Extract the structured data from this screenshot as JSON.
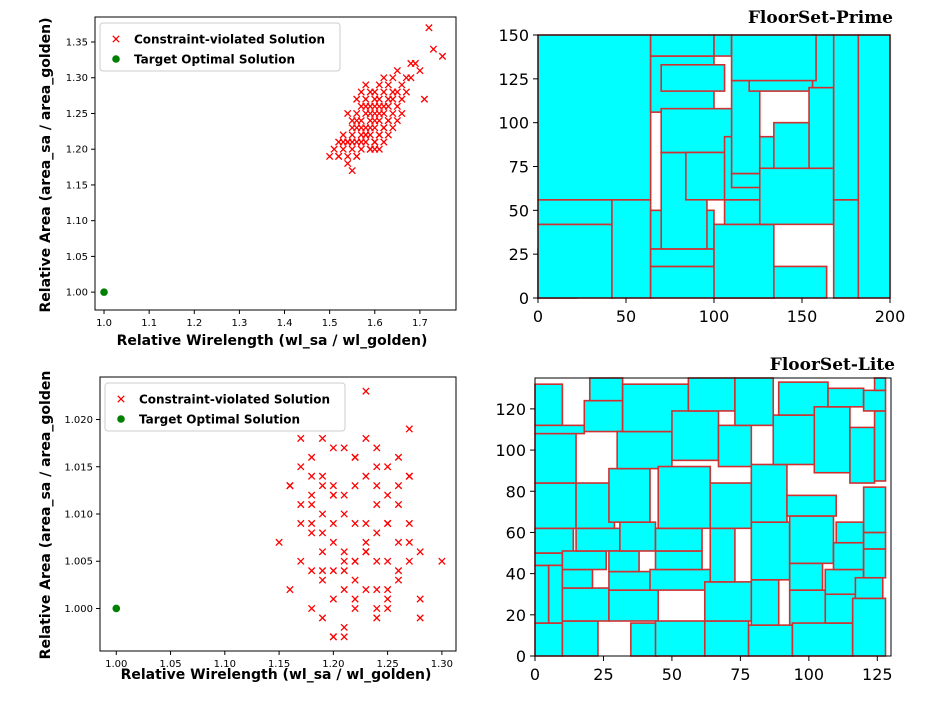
{
  "chart_data": [
    {
      "id": "prime-scatter",
      "type": "scatter",
      "xlabel": "Relative Wirelength (wl_sa / wl_golden)",
      "ylabel": "Relative Area (area_sa / area_golden)",
      "xlim": [
        0.98,
        1.78
      ],
      "ylim": [
        0.975,
        1.385
      ],
      "xticks": [
        1.0,
        1.1,
        1.2,
        1.3,
        1.4,
        1.5,
        1.6,
        1.7
      ],
      "yticks": [
        1.0,
        1.05,
        1.1,
        1.15,
        1.2,
        1.25,
        1.3,
        1.35
      ],
      "legend": [
        "Constraint-violated Solution",
        "Target Optimal Solution"
      ],
      "legend_position": "upper-left",
      "series": [
        {
          "name": "Constraint-violated Solution",
          "marker": "x",
          "color": "#ff0000",
          "x": [
            1.5,
            1.51,
            1.52,
            1.52,
            1.53,
            1.53,
            1.54,
            1.54,
            1.54,
            1.55,
            1.55,
            1.55,
            1.55,
            1.56,
            1.56,
            1.56,
            1.56,
            1.56,
            1.57,
            1.57,
            1.57,
            1.57,
            1.57,
            1.58,
            1.58,
            1.58,
            1.58,
            1.58,
            1.58,
            1.59,
            1.59,
            1.59,
            1.59,
            1.59,
            1.59,
            1.6,
            1.6,
            1.6,
            1.6,
            1.6,
            1.6,
            1.61,
            1.61,
            1.61,
            1.61,
            1.61,
            1.61,
            1.62,
            1.62,
            1.62,
            1.62,
            1.62,
            1.63,
            1.63,
            1.63,
            1.63,
            1.64,
            1.64,
            1.64,
            1.64,
            1.65,
            1.65,
            1.65,
            1.66,
            1.66,
            1.67,
            1.67,
            1.68,
            1.68,
            1.69,
            1.7,
            1.71,
            1.72,
            1.73,
            1.75,
            1.53,
            1.55,
            1.57,
            1.59,
            1.61,
            1.62,
            1.63,
            1.6,
            1.58,
            1.56,
            1.54,
            1.64,
            1.66,
            1.65,
            1.63,
            1.59,
            1.57,
            1.6,
            1.62,
            1.52,
            1.56,
            1.61,
            1.55,
            1.58,
            1.6,
            1.54
          ],
          "y": [
            1.19,
            1.2,
            1.21,
            1.19,
            1.2,
            1.22,
            1.19,
            1.21,
            1.18,
            1.17,
            1.2,
            1.22,
            1.23,
            1.19,
            1.21,
            1.23,
            1.24,
            1.25,
            1.2,
            1.22,
            1.24,
            1.26,
            1.28,
            1.21,
            1.22,
            1.23,
            1.25,
            1.27,
            1.29,
            1.2,
            1.22,
            1.24,
            1.25,
            1.26,
            1.28,
            1.21,
            1.23,
            1.24,
            1.25,
            1.27,
            1.28,
            1.22,
            1.24,
            1.25,
            1.26,
            1.27,
            1.29,
            1.23,
            1.25,
            1.26,
            1.28,
            1.3,
            1.24,
            1.26,
            1.27,
            1.29,
            1.25,
            1.27,
            1.28,
            1.3,
            1.26,
            1.28,
            1.31,
            1.27,
            1.29,
            1.28,
            1.3,
            1.3,
            1.32,
            1.32,
            1.31,
            1.27,
            1.37,
            1.34,
            1.33,
            1.21,
            1.24,
            1.23,
            1.2,
            1.22,
            1.21,
            1.24,
            1.2,
            1.26,
            1.27,
            1.25,
            1.23,
            1.25,
            1.24,
            1.22,
            1.23,
            1.21,
            1.26,
            1.23,
            1.19,
            1.19,
            1.2,
            1.21,
            1.22,
            1.21,
            1.21
          ]
        },
        {
          "name": "Target Optimal Solution",
          "marker": "o",
          "color": "#008000",
          "x": [
            1.0
          ],
          "y": [
            1.0
          ]
        }
      ]
    },
    {
      "id": "prime-floorplan",
      "type": "floorplan",
      "title": "FloorSet-Prime",
      "xlim": [
        0,
        200
      ],
      "ylim": [
        0,
        150
      ],
      "xticks": [
        0,
        50,
        100,
        150,
        200
      ],
      "yticks": [
        0,
        25,
        50,
        75,
        100,
        125,
        150
      ],
      "fill_color": "#00ffff",
      "edge_color": "#d03030",
      "blocks": [
        [
          0,
          0,
          22,
          28
        ],
        [
          0,
          0,
          42,
          42
        ],
        [
          0,
          42,
          42,
          14
        ],
        [
          42,
          0,
          22,
          56
        ],
        [
          0,
          56,
          64,
          94
        ],
        [
          64,
          0,
          100,
          18
        ],
        [
          64,
          18,
          36,
          10
        ],
        [
          64,
          28,
          36,
          22
        ],
        [
          70,
          28,
          26,
          55
        ],
        [
          64,
          106,
          36,
          32
        ],
        [
          70,
          118,
          36,
          15
        ],
        [
          70,
          83,
          44,
          25
        ],
        [
          84,
          56,
          30,
          27
        ],
        [
          64,
          138,
          36,
          12
        ],
        [
          100,
          138,
          10,
          12
        ],
        [
          100,
          0,
          34,
          42
        ],
        [
          106,
          42,
          28,
          14
        ],
        [
          106,
          56,
          28,
          36
        ],
        [
          110,
          63,
          44,
          8
        ],
        [
          110,
          71,
          16,
          53
        ],
        [
          120,
          118,
          48,
          8
        ],
        [
          126,
          42,
          42,
          32
        ],
        [
          134,
          74,
          22,
          26
        ],
        [
          154,
          74,
          14,
          46
        ],
        [
          168,
          0,
          14,
          56
        ],
        [
          168,
          56,
          14,
          94
        ],
        [
          182,
          0,
          18,
          150
        ],
        [
          156,
          120,
          12,
          30
        ],
        [
          110,
          124,
          48,
          26
        ]
      ]
    },
    {
      "id": "lite-scatter",
      "type": "scatter",
      "xlabel": "Relative Wirelength (wl_sa / wl_golden)",
      "ylabel": "Relative Area (area_sa / area_golden",
      "xlim": [
        0.985,
        1.313
      ],
      "ylim": [
        0.9955,
        1.0245
      ],
      "xticks": [
        1.0,
        1.05,
        1.1,
        1.15,
        1.2,
        1.25,
        1.3
      ],
      "yticks": [
        1.0,
        1.005,
        1.01,
        1.015,
        1.02
      ],
      "legend": [
        "Constraint-violated Solution",
        "Target Optimal Solution"
      ],
      "legend_position": "upper-left",
      "series": [
        {
          "name": "Constraint-violated Solution",
          "marker": "x",
          "color": "#ff0000",
          "x": [
            1.15,
            1.16,
            1.16,
            1.17,
            1.17,
            1.17,
            1.18,
            1.18,
            1.18,
            1.18,
            1.18,
            1.19,
            1.19,
            1.19,
            1.19,
            1.19,
            1.19,
            1.2,
            1.2,
            1.2,
            1.2,
            1.2,
            1.2,
            1.2,
            1.21,
            1.21,
            1.21,
            1.21,
            1.21,
            1.21,
            1.22,
            1.22,
            1.22,
            1.22,
            1.22,
            1.22,
            1.23,
            1.23,
            1.23,
            1.23,
            1.23,
            1.24,
            1.24,
            1.24,
            1.24,
            1.24,
            1.25,
            1.25,
            1.25,
            1.25,
            1.25,
            1.26,
            1.26,
            1.26,
            1.26,
            1.27,
            1.27,
            1.27,
            1.27,
            1.28,
            1.28,
            1.3,
            1.17,
            1.18,
            1.19,
            1.2,
            1.21,
            1.22,
            1.23,
            1.24,
            1.25,
            1.26,
            1.27,
            1.28,
            1.19,
            1.21,
            1.22,
            1.23,
            1.24,
            1.25,
            1.2,
            1.18,
            1.16,
            1.17,
            1.24,
            1.23,
            1.2,
            1.18,
            1.2,
            1.26,
            1.27,
            1.22,
            1.25,
            1.21,
            1.19,
            1.24
          ],
          "y": [
            1.007,
            1.013,
            1.002,
            1.018,
            1.009,
            1.005,
            1.014,
            1.011,
            1.004,
            1.0,
            1.016,
            1.018,
            1.013,
            1.008,
            1.006,
            1.003,
            0.999,
            1.017,
            1.012,
            1.009,
            1.007,
            1.004,
            1.001,
            0.997,
            1.012,
            1.01,
            1.006,
            1.004,
            1.002,
            0.998,
            1.016,
            1.013,
            1.009,
            1.005,
            1.003,
            1.0,
            1.018,
            1.014,
            1.009,
            1.006,
            1.002,
            1.017,
            1.013,
            1.008,
            1.005,
            0.999,
            1.015,
            1.012,
            1.009,
            1.005,
            1.001,
            1.016,
            1.011,
            1.007,
            1.004,
            1.019,
            1.014,
            1.009,
            1.005,
            1.006,
            1.001,
            1.005,
            1.011,
            1.008,
            1.014,
            1.012,
            1.017,
            1.005,
            1.023,
            1.011,
            1.009,
            1.013,
            1.014,
            0.999,
            1.01,
            1.005,
            1.001,
            1.006,
            1.0,
            1.002,
            1.02,
            1.012,
            1.013,
            1.015,
            1.015,
            1.007,
            0.997,
            1.009,
            1.013,
            1.003,
            1.007,
            1.016,
            1.0,
            0.997,
            1.004,
            1.002
          ]
        },
        {
          "name": "Target Optimal Solution",
          "marker": "o",
          "color": "#008000",
          "x": [
            1.0
          ],
          "y": [
            1.0
          ]
        }
      ]
    },
    {
      "id": "lite-floorplan",
      "type": "floorplan",
      "title": "FloorSet-Lite",
      "xlim": [
        0,
        130
      ],
      "ylim": [
        0,
        135
      ],
      "xticks": [
        0,
        25,
        50,
        75,
        100,
        125
      ],
      "yticks": [
        0,
        20,
        40,
        60,
        80,
        100,
        120
      ],
      "fill_color": "#00ffff",
      "edge_color": "#d03030",
      "blocks": [
        [
          0,
          0,
          10,
          16
        ],
        [
          0,
          16,
          5,
          28
        ],
        [
          0,
          44,
          10,
          6
        ],
        [
          0,
          50,
          14,
          12
        ],
        [
          0,
          62,
          15,
          22
        ],
        [
          0,
          84,
          15,
          24
        ],
        [
          0,
          112,
          10,
          20
        ],
        [
          0,
          108,
          18,
          4
        ],
        [
          5,
          16,
          5,
          28
        ],
        [
          10,
          0,
          13,
          17
        ],
        [
          10,
          17,
          17,
          16
        ],
        [
          10,
          33,
          11,
          9
        ],
        [
          10,
          42,
          16,
          9
        ],
        [
          15,
          51,
          16,
          11
        ],
        [
          15,
          62,
          14,
          22
        ],
        [
          18,
          109,
          14,
          15
        ],
        [
          20,
          124,
          12,
          11
        ],
        [
          27,
          17,
          18,
          15
        ],
        [
          27,
          32,
          16,
          9
        ],
        [
          27,
          41,
          11,
          10
        ],
        [
          31,
          51,
          13,
          14
        ],
        [
          27,
          65,
          15,
          26
        ],
        [
          30,
          91,
          20,
          18
        ],
        [
          32,
          109,
          24,
          23
        ],
        [
          35,
          0,
          10,
          16
        ],
        [
          44,
          0,
          18,
          17
        ],
        [
          42,
          32,
          22,
          10
        ],
        [
          44,
          42,
          17,
          9
        ],
        [
          44,
          51,
          17,
          11
        ],
        [
          45,
          62,
          19,
          30
        ],
        [
          50,
          95,
          17,
          24
        ],
        [
          56,
          119,
          17,
          16
        ],
        [
          62,
          0,
          16,
          17
        ],
        [
          62,
          17,
          17,
          19
        ],
        [
          64,
          36,
          9,
          26
        ],
        [
          64,
          62,
          15,
          22
        ],
        [
          67,
          92,
          12,
          20
        ],
        [
          73,
          112,
          14,
          23
        ],
        [
          78,
          0,
          16,
          15
        ],
        [
          79,
          15,
          10,
          22
        ],
        [
          79,
          37,
          14,
          28
        ],
        [
          79,
          65,
          13,
          28
        ],
        [
          87,
          93,
          15,
          24
        ],
        [
          89,
          117,
          18,
          16
        ],
        [
          93,
          15,
          13,
          17
        ],
        [
          93,
          32,
          12,
          13
        ],
        [
          93,
          45,
          16,
          23
        ],
        [
          94,
          0,
          22,
          16
        ],
        [
          92,
          68,
          18,
          10
        ],
        [
          102,
          89,
          13,
          32
        ],
        [
          106,
          16,
          11,
          14
        ],
        [
          106,
          30,
          14,
          12
        ],
        [
          109,
          42,
          11,
          13
        ],
        [
          110,
          55,
          10,
          10
        ],
        [
          107,
          121,
          13,
          9
        ],
        [
          115,
          84,
          9,
          27
        ],
        [
          116,
          0,
          12,
          28
        ],
        [
          117,
          28,
          10,
          10
        ],
        [
          120,
          38,
          8,
          14
        ],
        [
          120,
          52,
          8,
          8
        ],
        [
          120,
          60,
          8,
          22
        ],
        [
          124,
          85,
          4,
          34
        ],
        [
          120,
          119,
          8,
          10
        ],
        [
          124,
          129,
          4,
          6
        ]
      ]
    }
  ]
}
